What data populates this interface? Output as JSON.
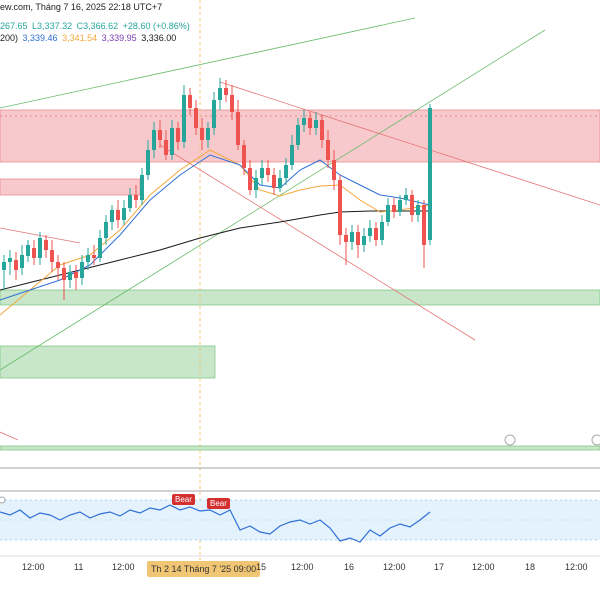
{
  "header": {
    "source_title": "ew.com, Tháng 7 16, 2025 22:18 UTC+7",
    "ohlc_open": "267.65",
    "ohlc_low": "L3,337.32",
    "ohlc_close": "C3,366.62",
    "ohlc_change": "+28.60 (+0.86%)"
  },
  "ma_legend": {
    "period": "200)",
    "v1": "3,339.46",
    "v2": "3,341.54",
    "v3": "3,339.95",
    "v4": "3,336.00"
  },
  "oscillator": {
    "bear_label_1": "Bear",
    "bear_label_2": "Bear"
  },
  "x_axis": {
    "labels": [
      "12:00",
      "11",
      "12:00",
      "15",
      "12:00",
      "16",
      "12:00",
      "17",
      "12:00",
      "18",
      "12:00"
    ],
    "crosshair_label": "Th 2 14 Tháng 7 '25   09:00"
  },
  "colors": {
    "bull": "#26a69a",
    "bear": "#ef5350",
    "resistance_zone": "#f7c9cc",
    "support_zone": "#c8e6c9",
    "ma_fast": "#2f6fd6",
    "ma_mid": "#f4a83a",
    "ma_slow": "#1a1a1a",
    "osc_line": "#2f6fd6"
  }
}
